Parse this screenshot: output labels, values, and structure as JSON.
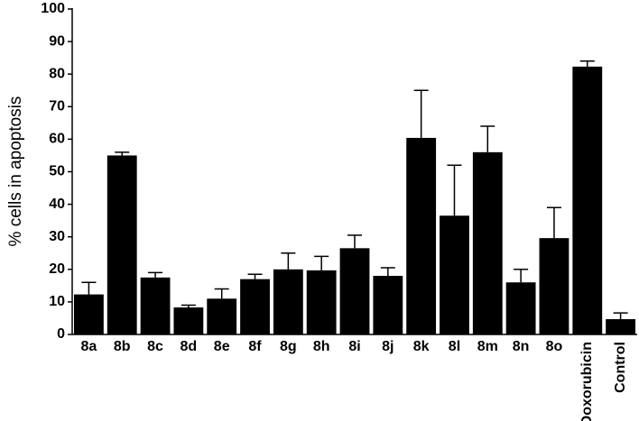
{
  "chart_data": {
    "type": "bar",
    "y_label": "% cells in apoptosis",
    "categories": [
      "8a",
      "8b",
      "8c",
      "8d",
      "8e",
      "8f",
      "8g",
      "8h",
      "8i",
      "8j",
      "8k",
      "8l",
      "8m",
      "8n",
      "8o",
      "Doxorubicin",
      "Control"
    ],
    "values": [
      12.3,
      55,
      17.5,
      8.3,
      11,
      17,
      20,
      19.7,
      26.5,
      18,
      60.4,
      36.5,
      56,
      16,
      29.6,
      82.3,
      4.7
    ],
    "errors": [
      3.7,
      1,
      1.5,
      0.7,
      3,
      1.5,
      5,
      4.3,
      4,
      2.5,
      14.6,
      15.5,
      8,
      4,
      9.4,
      1.7,
      1.9
    ],
    "color": "#000000",
    "ylim": [
      0,
      100
    ],
    "yticks": [
      0,
      10,
      20,
      30,
      40,
      50,
      60,
      70,
      80,
      90,
      100
    ],
    "grid": false
  }
}
